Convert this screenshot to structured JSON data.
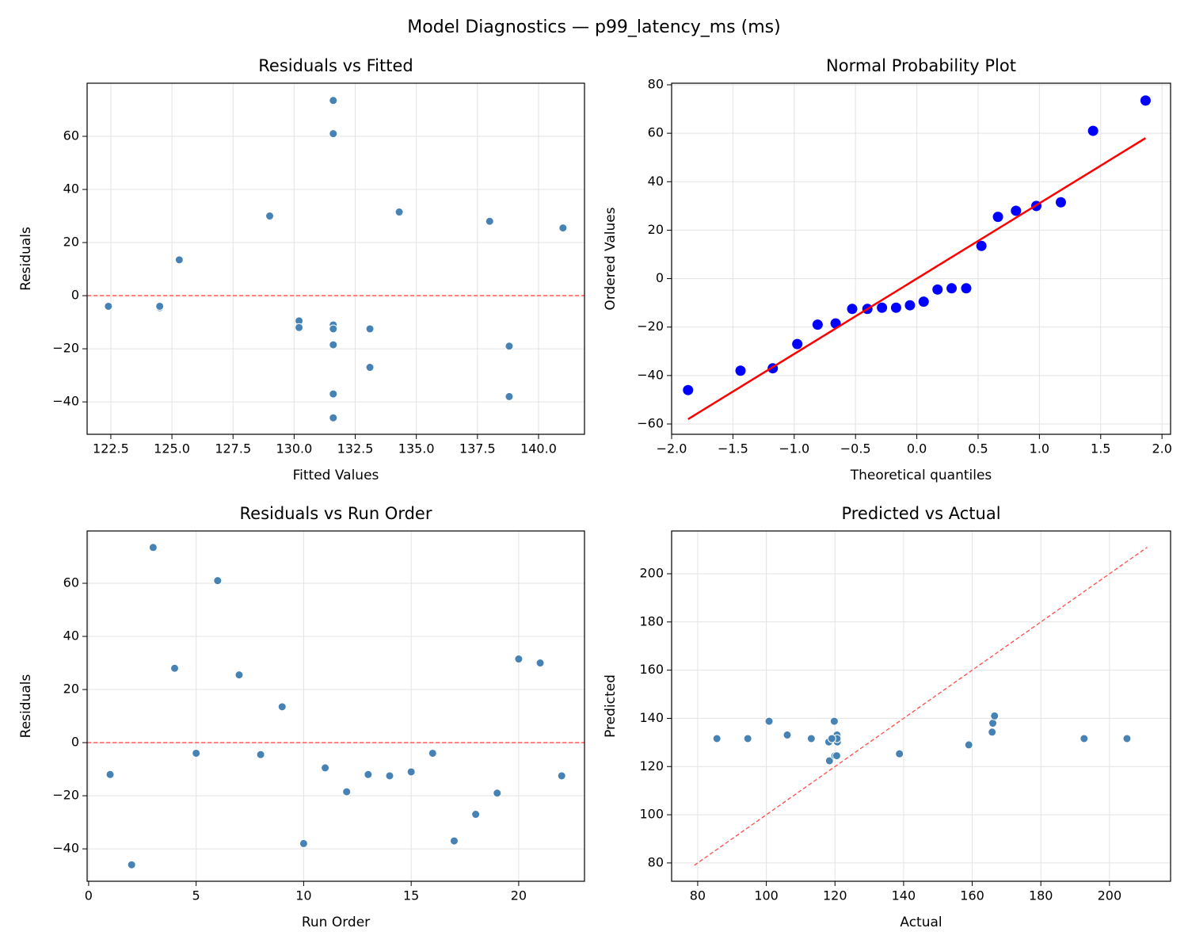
{
  "title": "Model Diagnostics — p99_latency_ms (ms)",
  "chart_data": [
    {
      "type": "scatter",
      "title": "Residuals vs Fitted",
      "xlabel": "Fitted Values",
      "ylabel": "Residuals",
      "x": [
        131.6,
        131.6,
        131.6,
        138.0,
        122.4,
        131.6,
        141.0,
        124.5,
        125.3,
        138.8,
        130.2,
        131.6,
        130.2,
        133.1,
        131.6,
        124.5,
        131.6,
        133.1,
        138.8,
        134.3,
        129.0,
        131.6
      ],
      "values": [
        -12,
        -46,
        73.5,
        28,
        -4,
        61,
        25.5,
        -4.5,
        13.5,
        -38,
        -9.5,
        -18.5,
        -12,
        -12.5,
        -11,
        -4,
        -37,
        -27,
        -19,
        31.5,
        30,
        -12.5
      ],
      "color": "#4682b4",
      "hline": {
        "value": 0,
        "color": "#ff4d4d"
      },
      "xlim": [
        121.53,
        141.88
      ],
      "ylim": [
        -52.2,
        80
      ],
      "xticks": [
        122.5,
        {
          "value": 125,
          "label": "125.0"
        },
        127.5,
        {
          "value": 130,
          "label": "130.0"
        },
        132.5,
        {
          "value": 135,
          "label": "135.0"
        },
        137.5,
        {
          "value": 140,
          "label": "140.0"
        }
      ],
      "yticks": [
        {
          "value": -40,
          "label": "−40"
        },
        {
          "value": -20,
          "label": "−20"
        },
        0,
        20,
        40,
        60
      ],
      "grid": true
    },
    {
      "type": "scatter",
      "title": "Normal Probability Plot",
      "xlabel": "Theoretical quantiles",
      "ylabel": "Ordered Values",
      "x": [
        -1.866,
        -1.438,
        -1.175,
        -0.975,
        -0.809,
        -0.662,
        -0.527,
        -0.403,
        -0.284,
        -0.169,
        -0.056,
        0.056,
        0.169,
        0.284,
        0.403,
        0.527,
        0.662,
        0.809,
        0.975,
        1.175,
        1.438,
        1.866
      ],
      "values": [
        -46,
        -38,
        -37,
        -27,
        -19,
        -18.5,
        -12.5,
        -12.5,
        -12,
        -12,
        -11,
        -9.5,
        -4.5,
        -4,
        -4,
        13.5,
        25.5,
        28,
        30,
        31.5,
        61,
        73.5
      ],
      "color": "#0000ff",
      "fit_line": {
        "x": [
          -1.866,
          1.866
        ],
        "y": [
          -58,
          58
        ],
        "color": "#ff0000"
      },
      "xlim": [
        -2.0,
        2.07
      ],
      "ylim": [
        -64.25,
        80.65
      ],
      "xticks": [
        {
          "value": -2,
          "label": "−2.0"
        },
        {
          "value": -1.5,
          "label": "−1.5"
        },
        {
          "value": -1,
          "label": "−1.0"
        },
        {
          "value": -0.5,
          "label": "−0.5"
        },
        {
          "value": 0,
          "label": "0.0"
        },
        0.5,
        {
          "value": 1,
          "label": "1.0"
        },
        1.5,
        {
          "value": 2,
          "label": "2.0"
        }
      ],
      "yticks": [
        {
          "value": -60,
          "label": "−60"
        },
        {
          "value": -40,
          "label": "−40"
        },
        {
          "value": -20,
          "label": "−20"
        },
        0,
        20,
        40,
        60,
        80
      ],
      "grid": true
    },
    {
      "type": "scatter",
      "title": "Residuals vs Run Order",
      "xlabel": "Run Order",
      "ylabel": "Residuals",
      "x": [
        1,
        2,
        3,
        4,
        5,
        6,
        7,
        8,
        9,
        10,
        11,
        12,
        13,
        14,
        15,
        16,
        17,
        18,
        19,
        20,
        21,
        22
      ],
      "values": [
        -12,
        -46,
        73.5,
        28,
        -4,
        61,
        25.5,
        -4.5,
        13.5,
        -38,
        -9.5,
        -18.5,
        -12,
        -12.5,
        -11,
        -4,
        -37,
        -27,
        -19,
        31.5,
        30,
        -12.5
      ],
      "color": "#4682b4",
      "hline": {
        "value": 0,
        "color": "#ff4d4d"
      },
      "xlim": [
        -0.07,
        23.06
      ],
      "ylim": [
        -52.2,
        79.7
      ],
      "xticks": [
        0,
        5,
        10,
        15,
        20
      ],
      "yticks": [
        {
          "value": -40,
          "label": "−40"
        },
        {
          "value": -20,
          "label": "−20"
        },
        0,
        20,
        40,
        60
      ],
      "grid": true
    },
    {
      "type": "scatter",
      "title": "Predicted vs Actual",
      "xlabel": "Actual",
      "ylabel": "Predicted",
      "x": [
        119.6,
        85.6,
        205.1,
        166.0,
        118.4,
        192.6,
        166.5,
        120.0,
        138.8,
        100.8,
        120.7,
        113.1,
        118.2,
        120.6,
        120.6,
        120.5,
        94.6,
        106.1,
        119.8,
        165.8,
        159.0,
        119.1
      ],
      "values": [
        131.6,
        131.6,
        131.6,
        138.0,
        122.4,
        131.6,
        141.0,
        124.5,
        125.3,
        138.8,
        130.2,
        131.6,
        130.2,
        133.1,
        131.6,
        124.5,
        131.6,
        133.1,
        138.8,
        134.3,
        129.0,
        131.6
      ],
      "color": "#4682b4",
      "reference_line": {
        "x": [
          79,
          211
        ],
        "y": [
          79,
          211
        ],
        "color": "#ff4d4d"
      },
      "xlim": [
        72.4,
        217.8
      ],
      "ylim": [
        72.4,
        217.75
      ],
      "xticks": [
        80,
        100,
        120,
        140,
        160,
        180,
        200
      ],
      "yticks": [
        80,
        100,
        120,
        140,
        160,
        180,
        200
      ],
      "grid": true
    }
  ]
}
